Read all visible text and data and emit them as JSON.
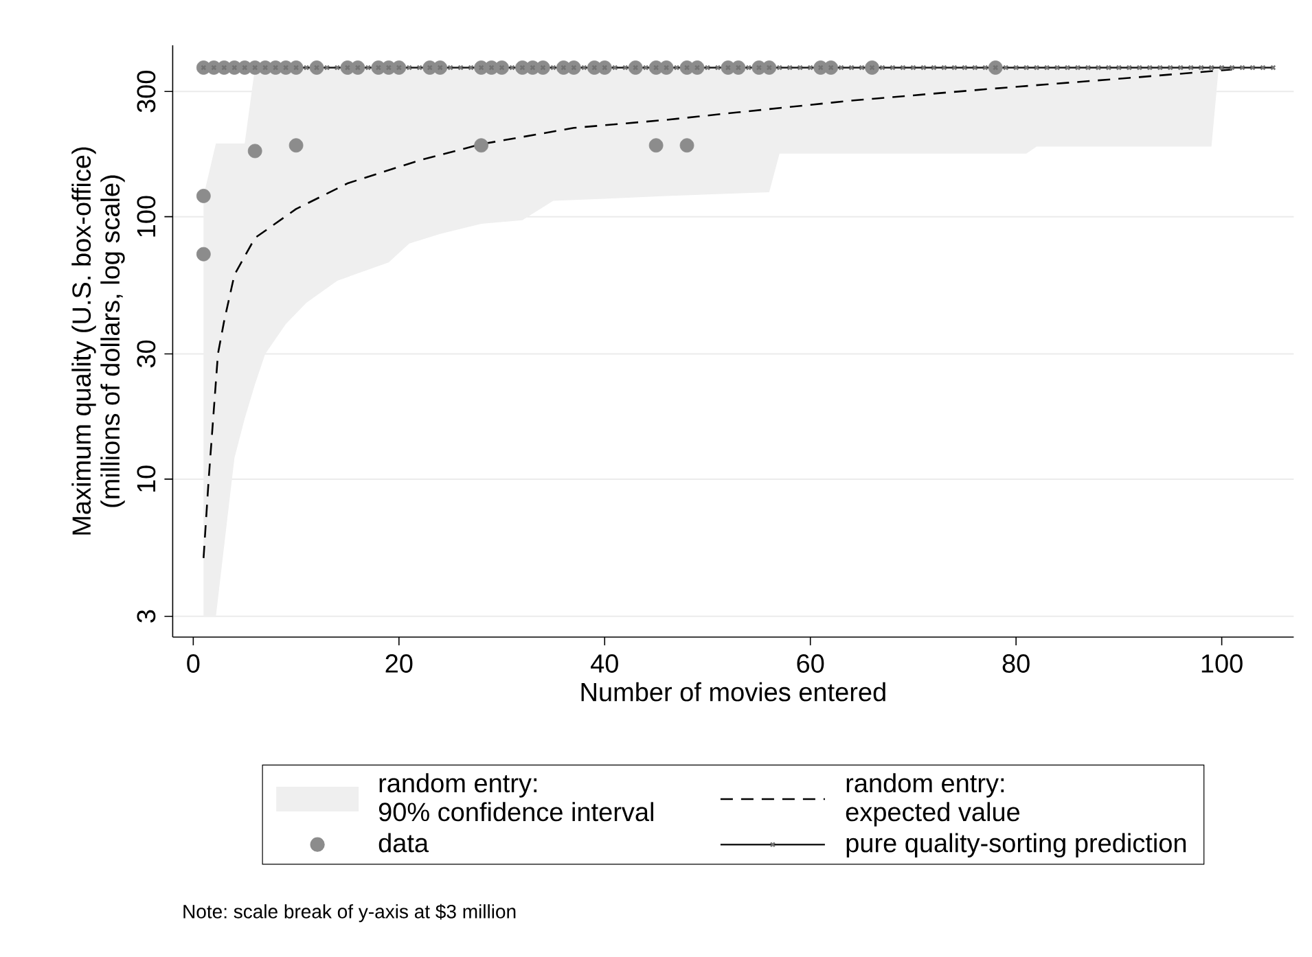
{
  "chart_data": {
    "type": "line",
    "xlabel": "Number of movies entered",
    "ylabel": "Maximum quality (U.S. box-office)\n(millions of dollars, log scale)",
    "xlim": [
      -2,
      107
    ],
    "xticks": [
      0,
      20,
      40,
      60,
      80,
      100
    ],
    "ylim": [
      2.5,
      450
    ],
    "yticks": [
      3,
      10,
      30,
      100,
      300
    ],
    "log": "y",
    "grid": "y",
    "legend": "bottom",
    "annotations": [
      "Note: scale break of y-axis at $3 million"
    ],
    "series": [
      {
        "name": "random entry:\n90% confidence interval",
        "type": "area",
        "color": "#efefef",
        "values": [
          null,
          null,
          null,
          null,
          null,
          null,
          null,
          null,
          null,
          null,
          null,
          null,
          null,
          null,
          null,
          null,
          null,
          null,
          null,
          null,
          null,
          null,
          null
        ],
        "x": [
          1,
          2.2,
          4,
          5,
          6,
          7,
          9,
          11,
          14,
          19,
          21,
          24,
          28,
          32,
          35,
          40,
          46,
          56,
          57,
          81,
          82,
          99,
          99.7
        ],
        "lower": [
          3,
          3,
          12,
          17,
          23,
          30,
          39,
          47,
          57,
          67,
          79,
          86,
          94,
          97,
          115,
          117,
          120,
          124,
          174,
          174,
          185,
          185,
          370
        ],
        "upper": [
          120,
          190,
          190,
          190,
          370,
          370,
          370,
          370,
          370,
          370,
          370,
          370,
          370,
          370,
          370,
          370,
          370,
          370,
          370,
          370,
          370,
          370,
          370
        ]
      },
      {
        "name": "random entry:\nexpected value",
        "type": "line",
        "color": "#000000",
        "line_style": "dashed",
        "marker": "none",
        "x": [
          1,
          1.5,
          2.4,
          3,
          4,
          6,
          10,
          15,
          22,
          28,
          37,
          46,
          53,
          64,
          77,
          91,
          101
        ],
        "values": [
          5,
          10,
          30,
          40,
          60,
          83,
          107,
          134,
          164,
          189,
          218,
          234,
          250,
          277,
          306,
          338,
          364
        ]
      },
      {
        "name": "data",
        "type": "scatter",
        "color": "#8c8c8c",
        "marker": "circle",
        "x": [
          1,
          1,
          6,
          10,
          28,
          45,
          48,
          1,
          2,
          3,
          4,
          5,
          6,
          7,
          8,
          9,
          10,
          12,
          15,
          16,
          18,
          19,
          20,
          23,
          24,
          28,
          29,
          30,
          32,
          33,
          34,
          36,
          37,
          39,
          40,
          43,
          45,
          46,
          48,
          49,
          52,
          53,
          55,
          56,
          61,
          62,
          66,
          78
        ],
        "values": [
          120,
          72,
          178,
          187,
          187,
          187,
          187,
          370,
          370,
          370,
          370,
          370,
          370,
          370,
          370,
          370,
          370,
          370,
          370,
          370,
          370,
          370,
          370,
          370,
          370,
          370,
          370,
          370,
          370,
          370,
          370,
          370,
          370,
          370,
          370,
          370,
          370,
          370,
          370,
          370,
          370,
          370,
          370,
          370,
          370,
          370,
          370,
          370
        ]
      },
      {
        "name": "pure quality-sorting prediction",
        "color": "#1a1a1a",
        "line_style": "solid",
        "marker": "cross",
        "x": [
          1,
          2,
          3,
          4,
          5,
          6,
          7,
          8,
          9,
          10,
          11,
          12,
          13,
          14,
          15,
          16,
          17,
          18,
          19,
          20,
          21,
          22,
          23,
          24,
          25,
          26,
          27,
          28,
          29,
          30,
          31,
          32,
          33,
          34,
          35,
          36,
          37,
          38,
          39,
          40,
          41,
          42,
          43,
          44,
          45,
          46,
          47,
          48,
          49,
          50,
          51,
          52,
          53,
          54,
          55,
          56,
          57,
          58,
          59,
          60,
          61,
          62,
          63,
          64,
          65,
          66,
          67,
          68,
          69,
          70,
          71,
          72,
          73,
          74,
          75,
          76,
          77,
          78,
          79,
          80,
          81,
          82,
          83,
          84,
          85,
          86,
          87,
          88,
          89,
          90,
          91,
          92,
          93,
          94,
          95,
          96,
          97,
          98,
          99,
          100,
          101,
          102,
          103,
          104,
          105
        ],
        "values": [
          370,
          370,
          370,
          370,
          370,
          370,
          370,
          370,
          370,
          370,
          370,
          370,
          370,
          370,
          370,
          370,
          370,
          370,
          370,
          370,
          370,
          370,
          370,
          370,
          370,
          370,
          370,
          370,
          370,
          370,
          370,
          370,
          370,
          370,
          370,
          370,
          370,
          370,
          370,
          370,
          370,
          370,
          370,
          370,
          370,
          370,
          370,
          370,
          370,
          370,
          370,
          370,
          370,
          370,
          370,
          370,
          370,
          370,
          370,
          370,
          370,
          370,
          370,
          370,
          370,
          370,
          370,
          370,
          370,
          370,
          370,
          370,
          370,
          370,
          370,
          370,
          370,
          370,
          370,
          370,
          370,
          370,
          370,
          370,
          370,
          370,
          370,
          370,
          370,
          370,
          370,
          370,
          370,
          370,
          370,
          370,
          370,
          370,
          370,
          370,
          370,
          370,
          370,
          370,
          370
        ]
      }
    ]
  }
}
